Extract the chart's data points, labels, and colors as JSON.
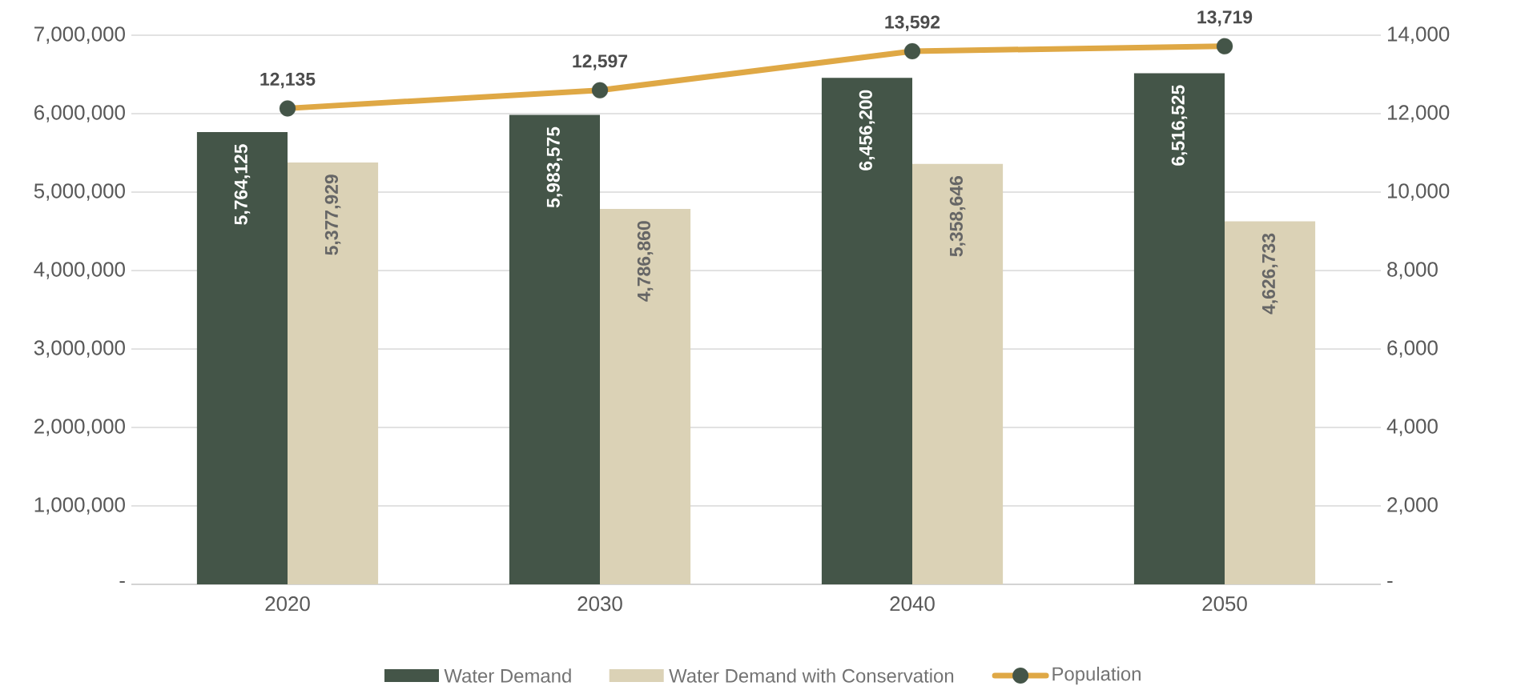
{
  "chart_data": {
    "type": "bar",
    "categories": [
      "2020",
      "2030",
      "2040",
      "2050"
    ],
    "series": [
      {
        "name": "Water Demand",
        "color": "#445548",
        "values": [
          5764125,
          5983575,
          6456200,
          6516525
        ],
        "value_labels": [
          "5,764,125",
          "5,983,575",
          "6,456,200",
          "6,516,525"
        ]
      },
      {
        "name": "Water Demand with Conservation",
        "color": "#dbd2b6",
        "values": [
          5377929,
          4786860,
          5358646,
          4626733
        ],
        "value_labels": [
          "5,377,929",
          "4,786,860",
          "5,358,646",
          "4,626,733"
        ]
      },
      {
        "name": "Population",
        "type": "line",
        "axis": "y2",
        "color": "#dfa845",
        "marker": "circle",
        "values": [
          12135,
          12597,
          13592,
          13719
        ],
        "value_labels": [
          "12,135",
          "12,597",
          "13,592",
          "13,719"
        ]
      }
    ],
    "ylim": [
      0,
      7000000
    ],
    "yticks": [
      {
        "value": 0,
        "label": "-"
      },
      {
        "value": 1000000,
        "label": "1,000,000"
      },
      {
        "value": 2000000,
        "label": "2,000,000"
      },
      {
        "value": 3000000,
        "label": "3,000,000"
      },
      {
        "value": 4000000,
        "label": "4,000,000"
      },
      {
        "value": 5000000,
        "label": "5,000,000"
      },
      {
        "value": 6000000,
        "label": "6,000,000"
      },
      {
        "value": 7000000,
        "label": "7,000,000"
      }
    ],
    "y2lim": [
      0,
      14000
    ],
    "y2ticks": [
      {
        "value": 0,
        "label": "-"
      },
      {
        "value": 2000,
        "label": "2,000"
      },
      {
        "value": 4000,
        "label": "4,000"
      },
      {
        "value": 6000,
        "label": "6,000"
      },
      {
        "value": 8000,
        "label": "8,000"
      },
      {
        "value": 10000,
        "label": "10,000"
      },
      {
        "value": 12000,
        "label": "12,000"
      },
      {
        "value": 14000,
        "label": "14,000"
      }
    ],
    "grid": "y",
    "legend": "bottom"
  }
}
